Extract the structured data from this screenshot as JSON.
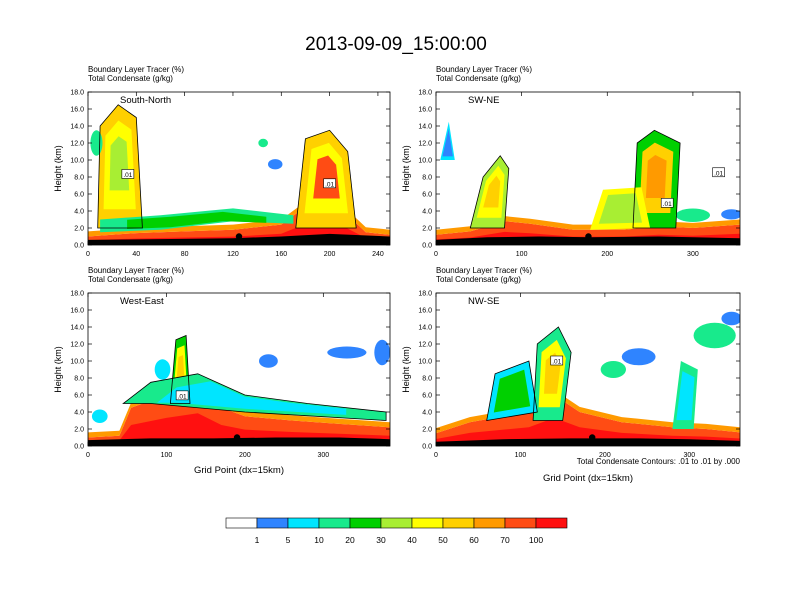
{
  "figure": {
    "title": "2013-09-09_15:00:00",
    "footnote": "Total Condensate Contours: .01 to .01 by .000",
    "colorbar": {
      "colors": [
        "#ffffff",
        "#2f84ff",
        "#00e5ff",
        "#18ea8c",
        "#00d000",
        "#a8ee33",
        "#ffff00",
        "#ffd000",
        "#ff9a00",
        "#ff4c14",
        "#ff1010"
      ],
      "labels": [
        "1",
        "5",
        "10",
        "20",
        "30",
        "40",
        "50",
        "60",
        "70",
        "100"
      ]
    }
  },
  "chart_data": [
    {
      "type": "heatmap",
      "title": "South-North",
      "subtitle_lines": [
        "Boundary Layer Tracer   (%)",
        "Total Condensate   (g/kg)"
      ],
      "ylabel": "Height (km)",
      "xlabel": "",
      "xlim": [
        0,
        250
      ],
      "ylim": [
        0,
        18
      ],
      "xticks": [
        "0",
        "40",
        "80",
        "120",
        "160",
        "200",
        "240"
      ],
      "yticks": [
        "0.0",
        "2.0",
        "4.0",
        "6.0",
        "8.0",
        "10.0",
        "12.0",
        "14.0",
        "16.0",
        "18.0"
      ],
      "contour_labels": [
        {
          "text": ".01",
          "x": 33,
          "y": 8.3
        },
        {
          "text": ".01",
          "x": 200,
          "y": 7.2
        }
      ],
      "marker": {
        "x": 125,
        "y": 1.0
      }
    },
    {
      "type": "heatmap",
      "title": "SW-NE",
      "subtitle_lines": [
        "Boundary Layer Tracer   (%)",
        "Total Condensate   (g/kg)"
      ],
      "ylabel": "Height (km)",
      "xlabel": "",
      "xlim": [
        0,
        355
      ],
      "ylim": [
        0,
        18
      ],
      "xticks": [
        "0",
        "100",
        "200",
        "300"
      ],
      "yticks": [
        "0.0",
        "2.0",
        "4.0",
        "6.0",
        "8.0",
        "10.0",
        "12.0",
        "14.0",
        "16.0",
        "18.0"
      ],
      "contour_labels": [
        {
          "text": ".01",
          "x": 270,
          "y": 4.9
        },
        {
          "text": ".01",
          "x": 330,
          "y": 8.5
        }
      ],
      "marker": {
        "x": 178,
        "y": 1.0
      }
    },
    {
      "type": "heatmap",
      "title": "West-East",
      "subtitle_lines": [
        "Boundary Layer Tracer   (%)",
        "Total Condensate   (g/kg)"
      ],
      "ylabel": "Height (km)",
      "xlabel": "Grid Point (dx=15km)",
      "xlim": [
        0,
        385
      ],
      "ylim": [
        0,
        18
      ],
      "xticks": [
        "0",
        "100",
        "200",
        "300"
      ],
      "yticks": [
        "0.0",
        "2.0",
        "4.0",
        "6.0",
        "8.0",
        "10.0",
        "12.0",
        "14.0",
        "16.0",
        "18.0"
      ],
      "contour_labels": [
        {
          "text": ".01",
          "x": 120,
          "y": 5.9
        }
      ],
      "marker": {
        "x": 190,
        "y": 1.0
      }
    },
    {
      "type": "heatmap",
      "title": "NW-SE",
      "subtitle_lines": [
        "Boundary Layer Tracer   (%)",
        "Total Condensate   (g/kg)"
      ],
      "ylabel": "Height (km)",
      "xlabel": "Grid Point (dx=15km)",
      "xlim": [
        0,
        360
      ],
      "ylim": [
        0,
        18
      ],
      "xticks": [
        "0",
        "100",
        "200",
        "300"
      ],
      "yticks": [
        "0.0",
        "2.0",
        "4.0",
        "6.0",
        "8.0",
        "10.0",
        "12.0",
        "14.0",
        "16.0",
        "18.0"
      ],
      "contour_labels": [
        {
          "text": ".01",
          "x": 143,
          "y": 10.0
        }
      ],
      "marker": {
        "x": 185,
        "y": 1.0
      }
    }
  ]
}
